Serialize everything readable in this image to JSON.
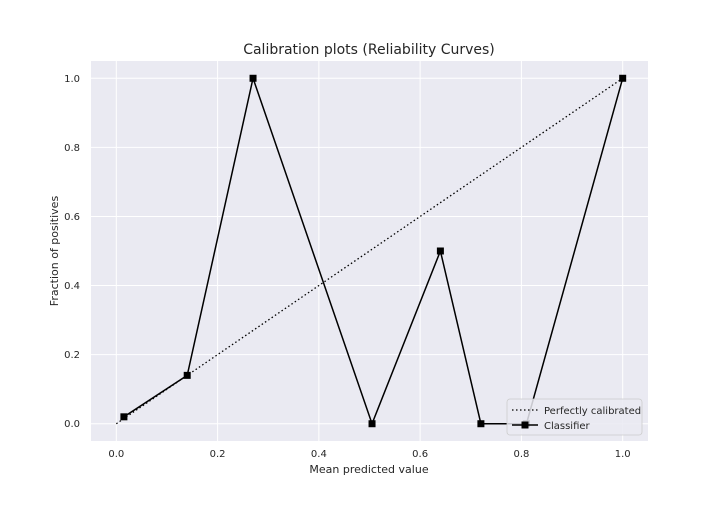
{
  "chart_data": {
    "type": "line",
    "title": "Calibration plots (Reliability Curves)",
    "xlabel": "Mean predicted value",
    "ylabel": "Fraction of positives",
    "xlim": [
      -0.05,
      1.05
    ],
    "ylim": [
      -0.05,
      1.05
    ],
    "xticks": [
      "0.0",
      "0.2",
      "0.4",
      "0.6",
      "0.8",
      "1.0"
    ],
    "yticks": [
      "0.0",
      "0.2",
      "0.4",
      "0.6",
      "0.8",
      "1.0"
    ],
    "grid": true,
    "legend_position": "lower-right",
    "background_color": "#eaeaf2",
    "grid_color": "#ffffff",
    "series": [
      {
        "name": "Perfectly calibrated",
        "style": "dotted",
        "color": "#000000",
        "x": [
          0.0,
          1.0
        ],
        "y": [
          0.0,
          1.0
        ]
      },
      {
        "name": "Classifier",
        "style": "solid",
        "marker": "square",
        "color": "#000000",
        "x": [
          0.015,
          0.14,
          0.27,
          0.505,
          0.64,
          0.72,
          0.81,
          1.0
        ],
        "y": [
          0.02,
          0.14,
          1.0,
          0.0,
          0.5,
          0.0,
          0.0,
          1.0
        ]
      }
    ]
  }
}
